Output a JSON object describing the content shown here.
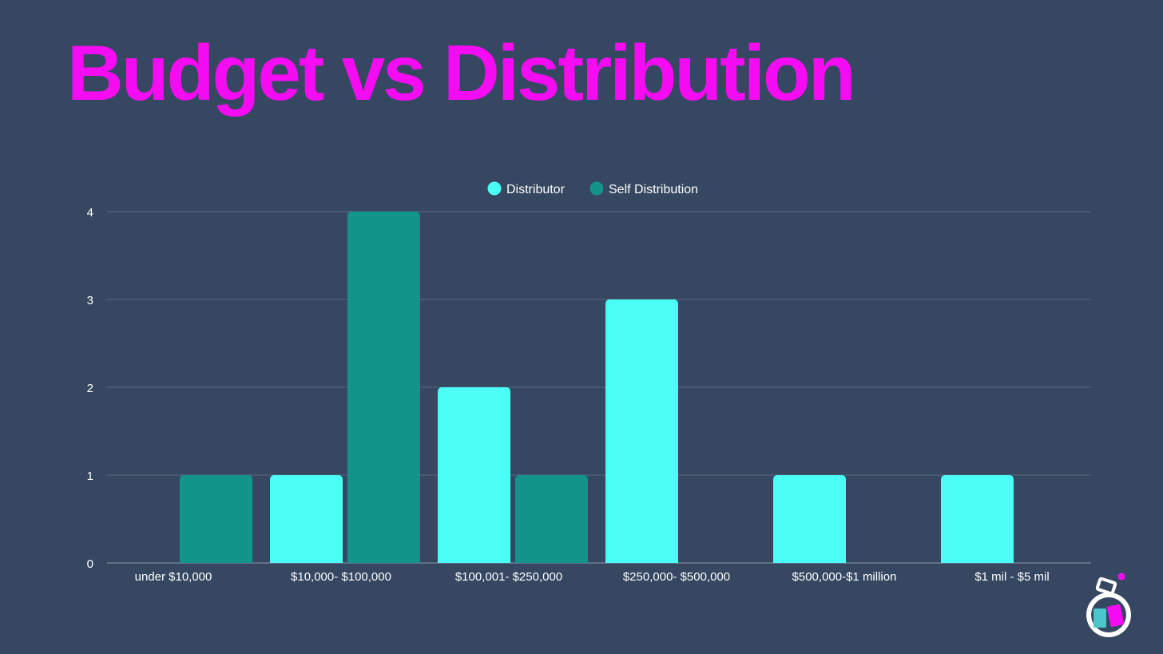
{
  "colors": {
    "background": "#354761",
    "title": "#f50cf2",
    "distributor": "#4bfff6",
    "self_distribution": "#13948b",
    "grid": "#5a6b82",
    "text": "#ffffff"
  },
  "chart_data": {
    "type": "bar",
    "title": "Budget vs Distribution",
    "categories": [
      "under $10,000",
      "$10,000- $100,000",
      "$100,001- $250,000",
      "$250,000- $500,000",
      "$500,000-$1 million",
      "$1 mil - $5 mil"
    ],
    "series": [
      {
        "name": "Distributor",
        "color": "#4bfff6",
        "values": [
          0,
          1,
          2,
          3,
          1,
          1
        ]
      },
      {
        "name": "Self Distribution",
        "color": "#13948b",
        "values": [
          1,
          4,
          1,
          0,
          0,
          0
        ]
      }
    ],
    "yticks": [
      0,
      1,
      2,
      3,
      4
    ],
    "ylim": [
      0,
      4
    ],
    "xlabel": "",
    "ylabel": "",
    "grid": true,
    "legend_position": "top-center"
  },
  "logo": {
    "icon": "flask-icon"
  }
}
